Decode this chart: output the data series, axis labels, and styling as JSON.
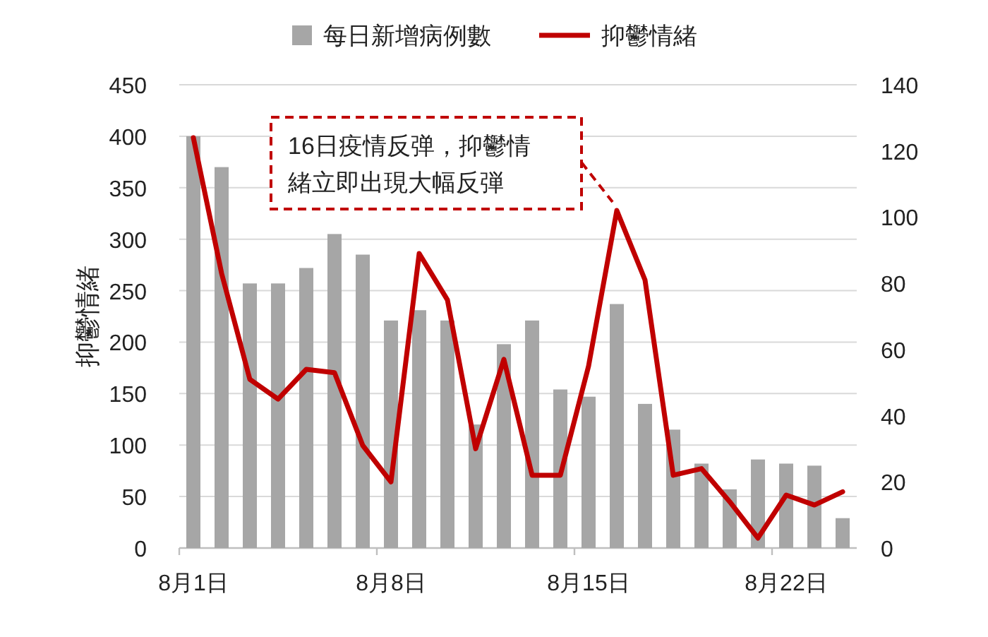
{
  "chart_data": {
    "type": "bar",
    "ylabel": "抑鬱情緒",
    "categories": [
      "8月1日",
      null,
      null,
      null,
      null,
      null,
      null,
      "8月8日",
      null,
      null,
      null,
      null,
      null,
      null,
      "8月15日",
      null,
      null,
      null,
      null,
      null,
      null,
      "8月22日",
      null,
      null
    ],
    "series": [
      {
        "name": "每日新增病例數",
        "color": "#a6a6a6",
        "values": [
          400,
          370,
          257,
          257,
          272,
          305,
          285,
          221,
          231,
          221,
          120,
          198,
          221,
          154,
          147,
          237,
          140,
          115,
          82,
          57,
          86,
          82,
          80,
          29
        ]
      },
      {
        "name": "抑鬱情緒",
        "type": "line",
        "axis": "y2",
        "color": "#c00000",
        "values": [
          124,
          83,
          51,
          45,
          54,
          53,
          31,
          20,
          89,
          75,
          30,
          57,
          22,
          22,
          55,
          102,
          81,
          22,
          24,
          14,
          3,
          16,
          13,
          17
        ]
      }
    ],
    "ylim": [
      0,
      450
    ],
    "yticks": [
      0,
      50,
      100,
      150,
      200,
      250,
      300,
      350,
      400,
      450
    ],
    "y2lim": [
      0,
      140
    ],
    "y2ticks": [
      0,
      20,
      40,
      60,
      80,
      100,
      120,
      140
    ],
    "grid": "y",
    "legend": "top",
    "annotations": [
      "16日疫情反弹，抑鬱情緒立即出現大幅反弾"
    ]
  }
}
